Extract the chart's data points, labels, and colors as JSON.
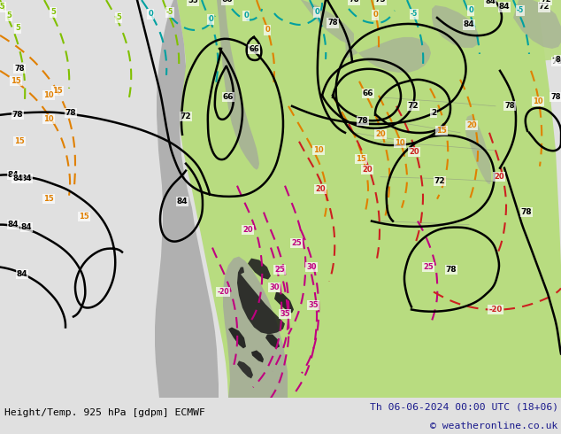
{
  "title_left": "Height/Temp. 925 hPa [gdpm] ECMWF",
  "title_right": "Th 06-06-2024 00:00 UTC (18+06)",
  "copyright": "© weatheronline.co.uk",
  "bg_color": "#e0e0e0",
  "footer_color": "#1a1a8c",
  "fig_width": 6.34,
  "fig_height": 4.9,
  "dpi": 100,
  "ocean_color": "#d8d8d8",
  "land_green": "#b8dc80",
  "land_gray": "#a0a0a0",
  "land_dark": "#606060",
  "land_black": "#1a1a1a",
  "contour_color": "#000000",
  "temp_orange": "#e08000",
  "temp_cyan": "#00a0a0",
  "temp_green": "#80c000",
  "temp_magenta": "#c00080",
  "temp_red": "#cc2020"
}
